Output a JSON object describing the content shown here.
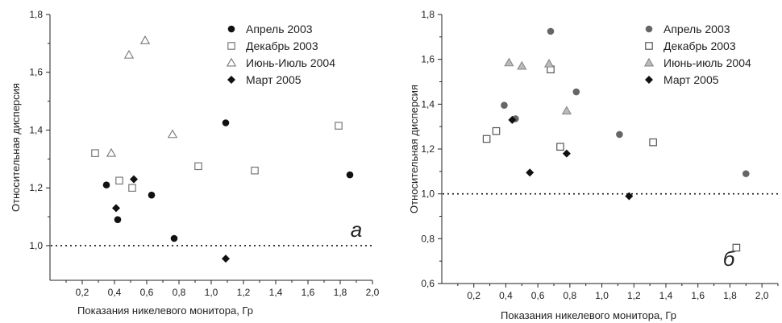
{
  "chart_data": [
    {
      "type": "scatter",
      "panel_label": "а",
      "xlabel": "Показания никелевого монитора,  Гр",
      "ylabel": "Относительная дисперсия",
      "xlim": [
        0.0,
        2.0
      ],
      "ylim": [
        0.88,
        1.8
      ],
      "xticks": [
        "0,2",
        "0,4",
        "0,6",
        "0,8",
        "1,0",
        "1,2",
        "1,4",
        "1,6",
        "1,8",
        "2,0"
      ],
      "yticks": [
        "1,0",
        "1,2",
        "1,4",
        "1,6",
        "1,8"
      ],
      "legend_position": "top-right",
      "reference_line": 1.0,
      "series": [
        {
          "name": "Апрель 2003",
          "marker": "circle-filled",
          "color": "#111111",
          "points": [
            [
              0.35,
              1.21
            ],
            [
              0.42,
              1.09
            ],
            [
              0.63,
              1.175
            ],
            [
              0.77,
              1.025
            ],
            [
              1.09,
              1.425
            ],
            [
              1.86,
              1.245
            ]
          ]
        },
        {
          "name": "Декабрь 2003",
          "marker": "square-open",
          "color": "#777777",
          "points": [
            [
              0.28,
              1.32
            ],
            [
              0.43,
              1.225
            ],
            [
              0.51,
              1.2
            ],
            [
              0.92,
              1.275
            ],
            [
              1.27,
              1.26
            ],
            [
              1.79,
              1.415
            ]
          ]
        },
        {
          "name": "Июнь-Июль 2004",
          "marker": "triangle-open",
          "color": "#777777",
          "points": [
            [
              0.38,
              1.32
            ],
            [
              0.49,
              1.66
            ],
            [
              0.59,
              1.71
            ],
            [
              0.76,
              1.385
            ]
          ]
        },
        {
          "name": "Март 2005",
          "marker": "diamond-filled",
          "color": "#111111",
          "points": [
            [
              0.41,
              1.13
            ],
            [
              0.52,
              1.23
            ],
            [
              1.09,
              0.955
            ]
          ]
        }
      ]
    },
    {
      "type": "scatter",
      "panel_label": "б",
      "xlabel": "Показания никелевого монитора,  Гр",
      "ylabel": "Относительная дисперсия",
      "xlim": [
        0.0,
        2.1
      ],
      "ylim": [
        0.6,
        1.8
      ],
      "xticks": [
        "0,2",
        "0,4",
        "0,6",
        "0,8",
        "1,0",
        "1,2",
        "1,4",
        "1,6",
        "1,8",
        "2,0"
      ],
      "yticks": [
        "0,6",
        "0,8",
        "1,0",
        "1,2",
        "1,4",
        "1,6",
        "1,8"
      ],
      "legend_position": "top-right",
      "reference_line": 1.0,
      "series": [
        {
          "name": "Апрель 2003",
          "marker": "circle-filled",
          "color": "#666666",
          "points": [
            [
              0.39,
              1.395
            ],
            [
              0.46,
              1.335
            ],
            [
              0.68,
              1.725
            ],
            [
              0.84,
              1.455
            ],
            [
              1.11,
              1.265
            ],
            [
              1.9,
              1.09
            ]
          ]
        },
        {
          "name": "Декабрь 2003",
          "marker": "square-open",
          "color": "#555555",
          "points": [
            [
              0.28,
              1.245
            ],
            [
              0.34,
              1.28
            ],
            [
              0.68,
              1.555
            ],
            [
              0.74,
              1.21
            ],
            [
              1.32,
              1.23
            ],
            [
              1.84,
              0.76
            ]
          ]
        },
        {
          "name": "Июнь-июль 2004",
          "marker": "triangle-filled",
          "color": "#bbbbbb",
          "points": [
            [
              0.42,
              1.585
            ],
            [
              0.5,
              1.57
            ],
            [
              0.67,
              1.58
            ],
            [
              0.78,
              1.37
            ]
          ]
        },
        {
          "name": "Март 2005",
          "marker": "diamond-filled",
          "color": "#111111",
          "points": [
            [
              0.44,
              1.33
            ],
            [
              0.55,
              1.095
            ],
            [
              0.78,
              1.18
            ],
            [
              1.17,
              0.99
            ]
          ]
        }
      ]
    }
  ]
}
